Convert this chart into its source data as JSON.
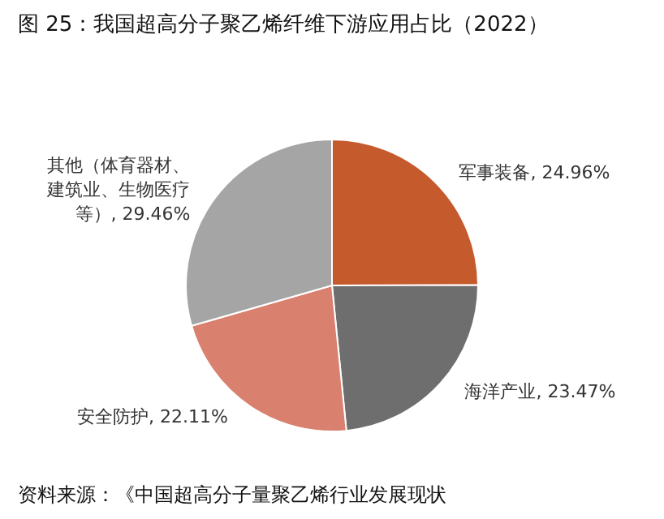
{
  "chart_data": {
    "type": "pie",
    "title": "图 25：我国超高分子聚乙烯纤维下游应用占比（2022）",
    "categories": [
      "军事装备",
      "海洋产业",
      "安全防护",
      "其他（体育器材、建筑业、生物医疗等）"
    ],
    "values": [
      24.96,
      23.47,
      22.11,
      29.46
    ],
    "value_labels": [
      "24.96%",
      "23.47%",
      "22.11%",
      "29.46%"
    ],
    "colors": [
      "#c55a2c",
      "#6e6e6e",
      "#d9806f",
      "#a5a5a5"
    ],
    "annotations": [
      "资料来源：《中国超高分子量聚乙烯行业发展现状"
    ]
  }
}
